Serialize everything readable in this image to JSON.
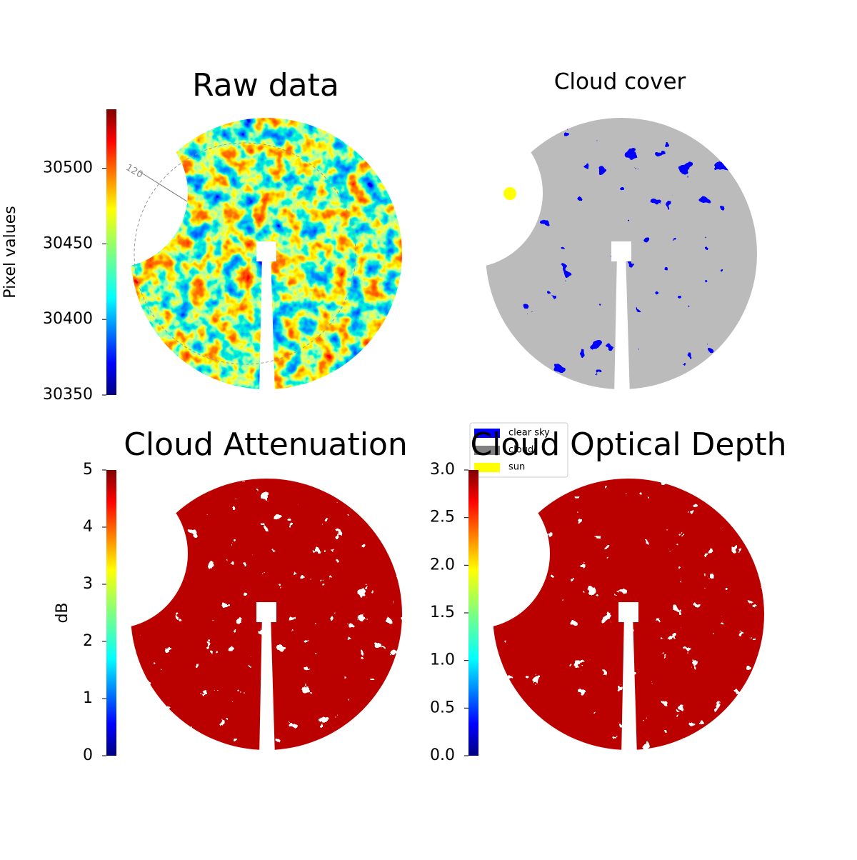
{
  "chart_data": [
    {
      "type": "image",
      "title": "Raw data",
      "colormap": "jet",
      "colorbar": {
        "label": "Pixel values",
        "clim": [
          30350,
          30539
        ],
        "ticks": [
          30350,
          30400,
          30450,
          30500
        ]
      },
      "annotations": [
        "120"
      ]
    },
    {
      "type": "image",
      "title": "Cloud cover",
      "colormap": "cloud-mask",
      "legend": [
        {
          "name": "clear sky",
          "color": "#0000ff"
        },
        {
          "name": "cloud",
          "color": "#808080"
        },
        {
          "name": "sun",
          "color": "#ffff00"
        }
      ]
    },
    {
      "type": "image",
      "title": "Cloud Attenuation",
      "colormap": "jet",
      "colorbar": {
        "label": "dB",
        "clim": [
          0,
          5
        ],
        "ticks": [
          0,
          1,
          2,
          3,
          4,
          5
        ]
      }
    },
    {
      "type": "image",
      "title": "Cloud Optical Depth",
      "colormap": "jet",
      "colorbar": {
        "clim": [
          0,
          3
        ],
        "ticks": [
          {
            "value": 0,
            "label": "0.0"
          },
          0.5,
          {
            "value": 1,
            "label": "1.0"
          },
          1.5,
          {
            "value": 2,
            "label": "2.0"
          },
          2.5,
          {
            "value": 3,
            "label": "3.0"
          }
        ]
      }
    }
  ]
}
